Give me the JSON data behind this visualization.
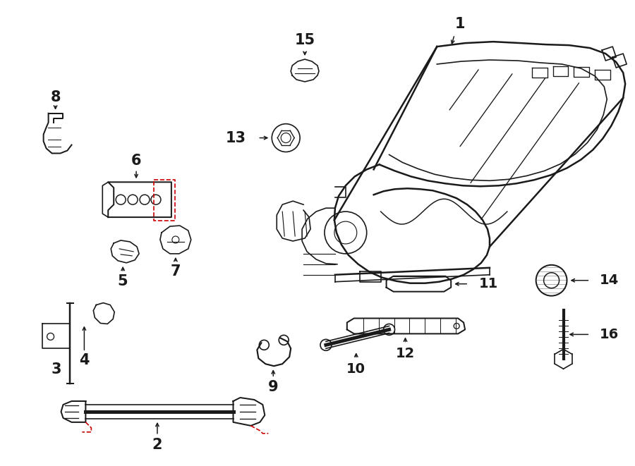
{
  "bg_color": "#ffffff",
  "line_color": "#1a1a1a",
  "red_color": "#cc0000",
  "lw": 1.2
}
